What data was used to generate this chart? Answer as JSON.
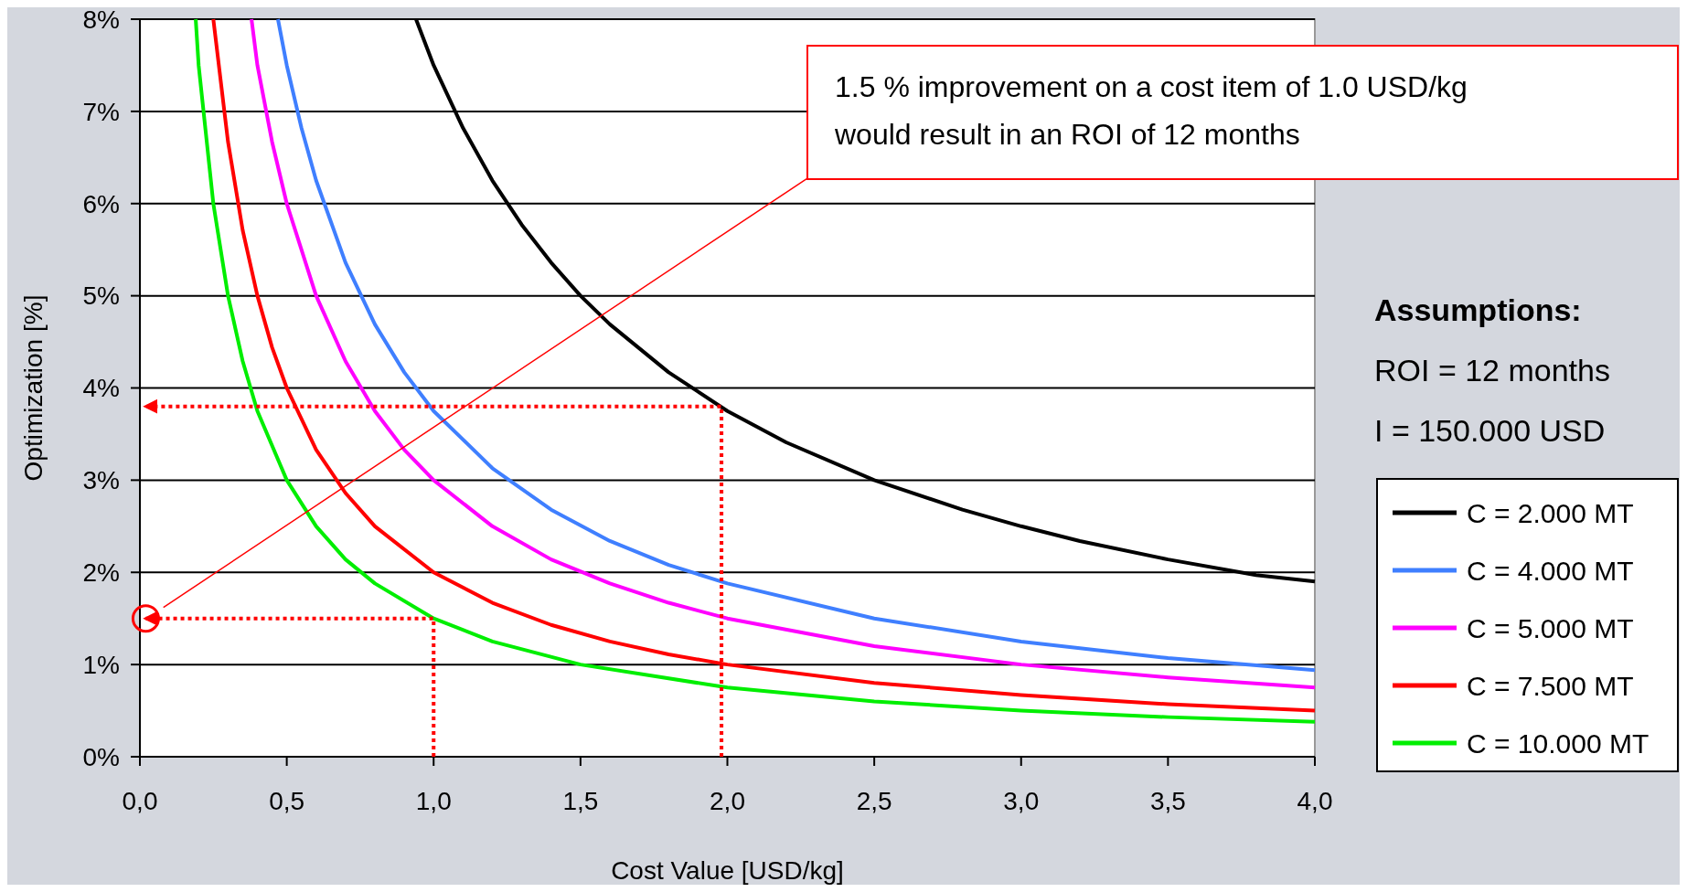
{
  "chart_data": {
    "type": "line",
    "xlabel": "Cost Value [USD/kg]",
    "ylabel": "Optimization [%]",
    "xlim": [
      0,
      4
    ],
    "xticks": [
      {
        "value": 0,
        "label": "0,0"
      },
      {
        "value": 0.5,
        "label": "0,5"
      },
      {
        "value": 1,
        "label": "1,0"
      },
      {
        "value": 1.5,
        "label": "1,5"
      },
      {
        "value": 2,
        "label": "2,0"
      },
      {
        "value": 2.5,
        "label": "2,5"
      },
      {
        "value": 3,
        "label": "3,0"
      },
      {
        "value": 3.5,
        "label": "3,5"
      },
      {
        "value": 4,
        "label": "4,0"
      }
    ],
    "ylim": [
      0,
      8
    ],
    "yticks": [
      {
        "value": 0,
        "label": "0%"
      },
      {
        "value": 1,
        "label": "1%"
      },
      {
        "value": 2,
        "label": "2%"
      },
      {
        "value": 3,
        "label": "3%"
      },
      {
        "value": 4,
        "label": "4%"
      },
      {
        "value": 5,
        "label": "5%"
      },
      {
        "value": 6,
        "label": "6%"
      },
      {
        "value": 7,
        "label": "7%"
      },
      {
        "value": 8,
        "label": "8%"
      }
    ],
    "grid": "y",
    "legend": "right",
    "line_style": "solid",
    "series": [
      {
        "name": "C = 2.000 MT",
        "color": "#000000",
        "x": [
          0.94,
          1.0,
          1.1,
          1.2,
          1.3,
          1.4,
          1.5,
          1.6,
          1.8,
          2.0,
          2.2,
          2.5,
          2.8,
          3.0,
          3.2,
          3.5,
          3.8,
          4.0
        ],
        "values": [
          8,
          7.5,
          6.82,
          6.25,
          5.77,
          5.36,
          5.0,
          4.69,
          4.17,
          3.75,
          3.41,
          3.0,
          2.68,
          2.5,
          2.34,
          2.14,
          1.97,
          1.9
        ]
      },
      {
        "name": "C = 4.000 MT",
        "color": "#3f7fff",
        "x": [
          0.47,
          0.5,
          0.55,
          0.6,
          0.7,
          0.8,
          0.9,
          1.0,
          1.2,
          1.4,
          1.6,
          1.8,
          2.0,
          2.5,
          3.0,
          3.5,
          4.0
        ],
        "values": [
          8,
          7.5,
          6.82,
          6.25,
          5.36,
          4.69,
          4.17,
          3.75,
          3.13,
          2.68,
          2.34,
          2.08,
          1.88,
          1.5,
          1.25,
          1.07,
          0.94
        ]
      },
      {
        "name": "C = 5.000 MT",
        "color": "#ff00ff",
        "x": [
          0.38,
          0.4,
          0.45,
          0.5,
          0.6,
          0.7,
          0.8,
          0.9,
          1.0,
          1.2,
          1.4,
          1.6,
          1.8,
          2.0,
          2.5,
          3.0,
          3.5,
          4.0
        ],
        "values": [
          8,
          7.5,
          6.67,
          6.0,
          5.0,
          4.29,
          3.75,
          3.33,
          3.0,
          2.5,
          2.14,
          1.88,
          1.67,
          1.5,
          1.2,
          1.0,
          0.86,
          0.75
        ]
      },
      {
        "name": "C = 7.500 MT",
        "color": "#ff0000",
        "x": [
          0.25,
          0.3,
          0.35,
          0.4,
          0.45,
          0.5,
          0.6,
          0.7,
          0.8,
          1.0,
          1.2,
          1.4,
          1.6,
          1.8,
          2.0,
          2.5,
          3.0,
          3.5,
          4.0
        ],
        "values": [
          8,
          6.67,
          5.71,
          5.0,
          4.44,
          4.0,
          3.33,
          2.86,
          2.5,
          2.0,
          1.67,
          1.43,
          1.25,
          1.11,
          1.0,
          0.8,
          0.67,
          0.57,
          0.5
        ]
      },
      {
        "name": "C = 10.000 MT",
        "color": "#00ee00",
        "x": [
          0.19,
          0.2,
          0.25,
          0.3,
          0.35,
          0.4,
          0.5,
          0.6,
          0.7,
          0.8,
          1.0,
          1.2,
          1.5,
          2.0,
          2.5,
          3.0,
          3.5,
          4.0
        ],
        "values": [
          8,
          7.5,
          6.0,
          5.0,
          4.29,
          3.75,
          3.0,
          2.5,
          2.14,
          1.88,
          1.5,
          1.25,
          1.0,
          0.75,
          0.6,
          0.5,
          0.43,
          0.38
        ]
      },
      {
        "color": "#ff0000",
        "x": [
          0.08,
          2.27
        ],
        "values": [
          1.62,
          6.27
        ]
      },
      {
        "color": "#ff0000",
        "line_style": "dotted",
        "x": [
          1,
          1,
          0.02
        ],
        "values": [
          0,
          1.5,
          1.5
        ]
      },
      {
        "color": "#ff0000",
        "line_style": "dotted",
        "x": [
          1.98,
          1.98,
          0.02
        ],
        "values": [
          0,
          3.8,
          3.8
        ]
      }
    ],
    "annotations": [
      "1.5 % improvement on a cost item of 1.0 USD/kg would result in an ROI of 12 months",
      "Assumptions:",
      "ROI = 12 months",
      "I = 150.000 USD"
    ]
  }
}
